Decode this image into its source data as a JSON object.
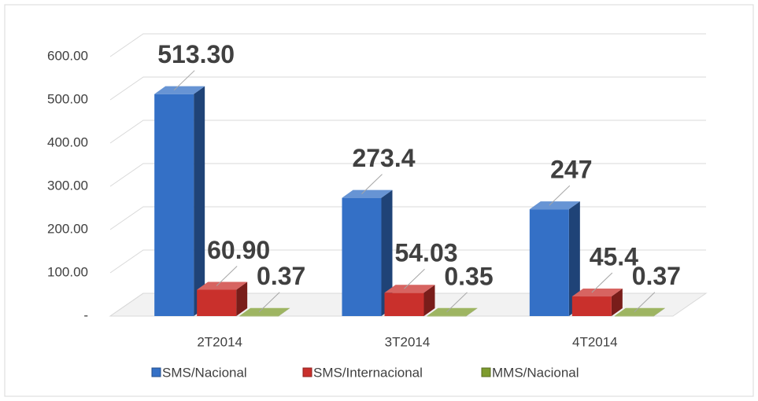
{
  "chart_data": {
    "type": "bar3d",
    "categories": [
      "2T2014",
      "3T2014",
      "4T2014"
    ],
    "series": [
      {
        "name": "SMS/Nacional",
        "color": "#3470c6",
        "values": [
          513.3,
          273.4,
          247
        ],
        "value_labels": [
          "513.30",
          "273.4",
          "247"
        ]
      },
      {
        "name": "SMS/Internacional",
        "color": "#c9302c",
        "values": [
          60.9,
          54.03,
          45.4
        ],
        "value_labels": [
          "60.90",
          "54.03",
          "45.4"
        ]
      },
      {
        "name": "MMS/Nacional",
        "color": "#7e9c2e",
        "values": [
          0.37,
          0.35,
          0.37
        ],
        "value_labels": [
          "0.37",
          "0.35",
          "0.37"
        ]
      }
    ],
    "ylim": [
      0,
      600
    ],
    "yticks": [
      {
        "value": 0,
        "label": "-"
      },
      {
        "value": 100,
        "label": "100.00"
      },
      {
        "value": 200,
        "label": "200.00"
      },
      {
        "value": 300,
        "label": "300.00"
      },
      {
        "value": 400,
        "label": "400.00"
      },
      {
        "value": 500,
        "label": "500.00"
      },
      {
        "value": 600,
        "label": "600.00"
      }
    ],
    "grid": true,
    "legend": "bottom"
  }
}
